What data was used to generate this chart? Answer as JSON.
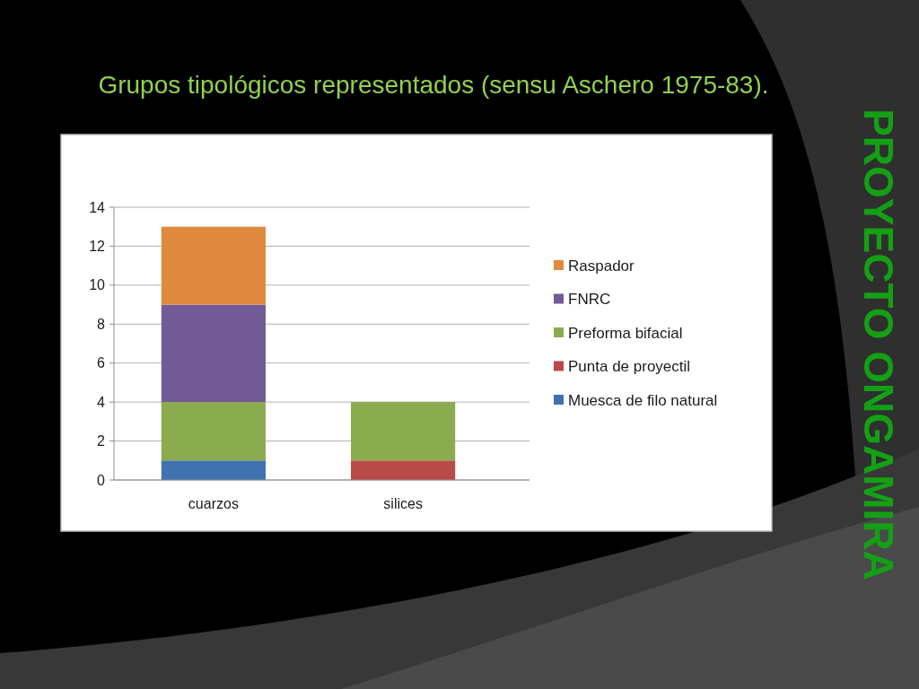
{
  "chart_data": {
    "type": "bar",
    "title": "Grupos tipológicos representados (sensu Aschero 1975-83).",
    "categories": [
      "cuarzos",
      "silices"
    ],
    "series": [
      {
        "name": "Muesca de filo natural",
        "color": "#3f72ae",
        "values": [
          1,
          0
        ]
      },
      {
        "name": "Punta de proyectil",
        "color": "#b84a47",
        "values": [
          0,
          1
        ]
      },
      {
        "name": "Preforma bifacial",
        "color": "#8bab4f",
        "values": [
          3,
          3
        ]
      },
      {
        "name": "FNRC",
        "color": "#725a96",
        "values": [
          5,
          0
        ]
      },
      {
        "name": "Raspador",
        "color": "#e08a3f",
        "values": [
          4,
          0
        ]
      }
    ],
    "stacked": true,
    "ylim": [
      0,
      14
    ],
    "yticks": [
      0,
      2,
      4,
      6,
      8,
      10,
      12,
      14
    ],
    "grid": "y",
    "legend": "right",
    "annotations": [
      "PROYECTO ONGAMIRA"
    ]
  }
}
